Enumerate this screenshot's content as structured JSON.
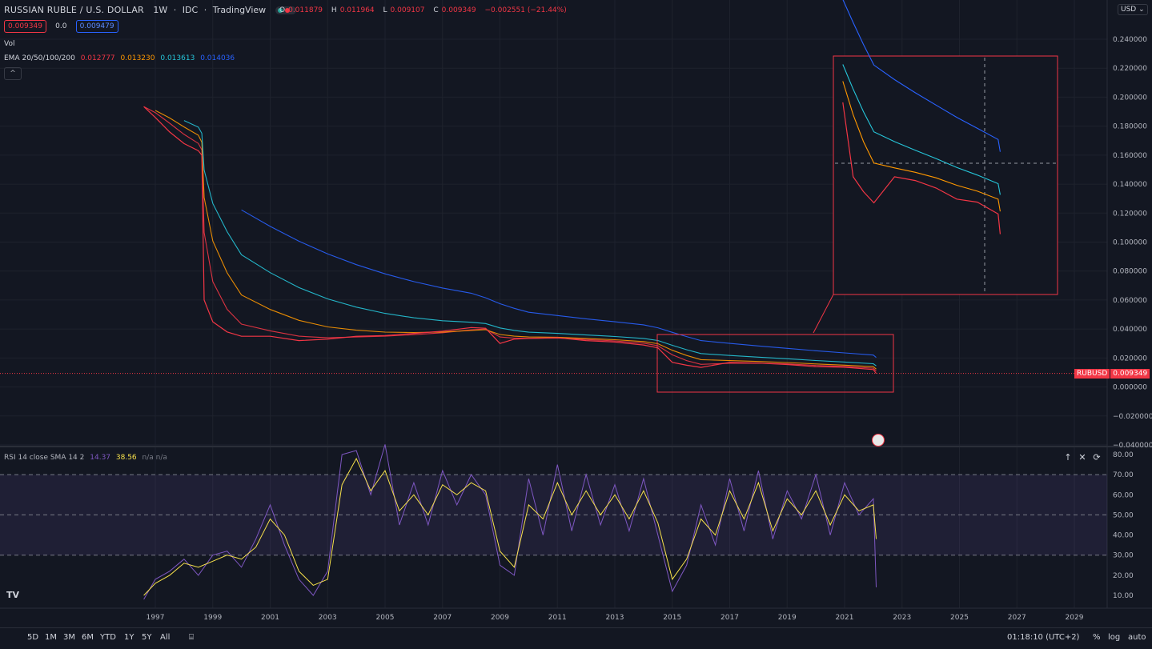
{
  "header": {
    "symbol_title": "RUSSIAN RUBLE / U.S. DOLLAR",
    "interval": "1W",
    "exchange": "IDC",
    "source": "TradingView",
    "ohlc": {
      "open_label": "O",
      "open": "0.011879",
      "high_label": "H",
      "high": "0.011964",
      "low_label": "L",
      "low": "0.009107",
      "close_label": "C",
      "close": "0.009349",
      "change": "−0.002551 (−21.44%)"
    },
    "bid": "0.009349",
    "spread": "0.0",
    "ask": "0.009479"
  },
  "indicators": {
    "volume_label": "Vol",
    "ema_label": "EMA 20/50/100/200",
    "ema_values": [
      "0.012777",
      "0.013230",
      "0.013613",
      "0.014036"
    ]
  },
  "price_axis": {
    "currency_button": "USD",
    "labels": [
      "0.240000",
      "0.220000",
      "0.200000",
      "0.180000",
      "0.160000",
      "0.140000",
      "0.120000",
      "0.100000",
      "0.080000",
      "0.060000",
      "0.040000",
      "0.020000",
      "0.000000",
      "−0.020000",
      "−0.040000"
    ],
    "last_price_symbol": "RUBUSD",
    "last_price": "0.009349"
  },
  "rsi": {
    "legend": "RSI 14 close SMA 14 2",
    "rsi_value": "14.37",
    "sma_value": "38.56",
    "extra": "n/a n/a",
    "axis_labels": [
      "80.00",
      "70.00",
      "60.00",
      "50.00",
      "40.00",
      "30.00",
      "20.00",
      "10.00"
    ],
    "buttons": [
      "↑",
      "✕",
      "⟳"
    ]
  },
  "time_axis": {
    "labels": [
      "1997",
      "1999",
      "2001",
      "2003",
      "2005",
      "2007",
      "2009",
      "2011",
      "2013",
      "2015",
      "2017",
      "2019",
      "2021",
      "2023",
      "2025",
      "2027",
      "2029"
    ]
  },
  "bottom_bar": {
    "ranges": [
      "5D",
      "1M",
      "3M",
      "6M",
      "YTD",
      "1Y",
      "5Y",
      "All"
    ],
    "time": "01:18:10 (UTC+2)",
    "percent": "%",
    "log": "log",
    "auto": "auto"
  },
  "colors": {
    "background": "#131722",
    "price_up": "#26a69a",
    "price_down": "#f23645",
    "ema20": "#f23645",
    "ema50": "#ff9800",
    "ema100": "#26c6da",
    "ema200": "#2962ff",
    "rsi_line": "#7e57c2",
    "rsi_sma": "#f7e14b",
    "highlight_box": "#f23645"
  },
  "chart_data": {
    "type": "line",
    "title": "RUSSIAN RUBLE / U.S. DOLLAR",
    "x": [
      1996.6,
      1997.0,
      1997.5,
      1998.0,
      1998.5,
      1998.62,
      1998.7,
      1999.0,
      1999.5,
      2000.0,
      2001.0,
      2002.0,
      2003.0,
      2004.0,
      2005.0,
      2006.0,
      2007.0,
      2008.0,
      2008.5,
      2009.0,
      2009.5,
      2010.0,
      2011.0,
      2012.0,
      2013.0,
      2014.0,
      2014.5,
      2015.0,
      2015.5,
      2016.0,
      2017.0,
      2018.0,
      2019.0,
      2020.0,
      2021.0,
      2022.0,
      2022.1
    ],
    "series": [
      {
        "name": "RUBUSD",
        "values": [
          0.1935,
          0.186,
          0.176,
          0.168,
          0.163,
          0.16,
          0.06,
          0.045,
          0.038,
          0.035,
          0.035,
          0.032,
          0.033,
          0.035,
          0.0355,
          0.037,
          0.0385,
          0.041,
          0.0405,
          0.03,
          0.033,
          0.0335,
          0.034,
          0.032,
          0.031,
          0.029,
          0.027,
          0.017,
          0.015,
          0.0135,
          0.017,
          0.0165,
          0.0155,
          0.014,
          0.0136,
          0.012,
          0.0093
        ]
      }
    ],
    "ylim": [
      -0.04,
      0.25
    ],
    "xlim": [
      1996.0,
      2030.0
    ]
  },
  "rsi_data": {
    "x": [
      1996.6,
      1997.0,
      1997.5,
      1998.0,
      1998.5,
      1999.0,
      1999.5,
      2000.0,
      2000.5,
      2001.0,
      2001.5,
      2002.0,
      2002.5,
      2003.0,
      2003.5,
      2004.0,
      2004.5,
      2005.0,
      2005.5,
      2006.0,
      2006.5,
      2007.0,
      2007.5,
      2008.0,
      2008.5,
      2009.0,
      2009.5,
      2010.0,
      2010.5,
      2011.0,
      2011.5,
      2012.0,
      2012.5,
      2013.0,
      2013.5,
      2014.0,
      2014.5,
      2015.0,
      2015.5,
      2016.0,
      2016.5,
      2017.0,
      2017.5,
      2018.0,
      2018.5,
      2019.0,
      2019.5,
      2020.0,
      2020.5,
      2021.0,
      2021.5,
      2022.0,
      2022.1
    ],
    "rsi": [
      8,
      18,
      22,
      28,
      20,
      30,
      32,
      24,
      38,
      55,
      35,
      18,
      10,
      22,
      80,
      82,
      60,
      85,
      45,
      66,
      45,
      72,
      55,
      70,
      60,
      25,
      20,
      68,
      40,
      75,
      42,
      70,
      45,
      65,
      42,
      68,
      40,
      12,
      25,
      55,
      35,
      68,
      42,
      72,
      38,
      62,
      48,
      70,
      40,
      66,
      50,
      58,
      14
    ],
    "sma": [
      10,
      16,
      20,
      26,
      24,
      27,
      30,
      28,
      34,
      48,
      40,
      22,
      15,
      18,
      65,
      78,
      62,
      72,
      52,
      60,
      50,
      65,
      60,
      66,
      62,
      32,
      24,
      55,
      48,
      66,
      50,
      62,
      50,
      60,
      48,
      62,
      46,
      18,
      28,
      48,
      40,
      62,
      48,
      66,
      42,
      58,
      50,
      62,
      45,
      60,
      52,
      55,
      38
    ]
  }
}
